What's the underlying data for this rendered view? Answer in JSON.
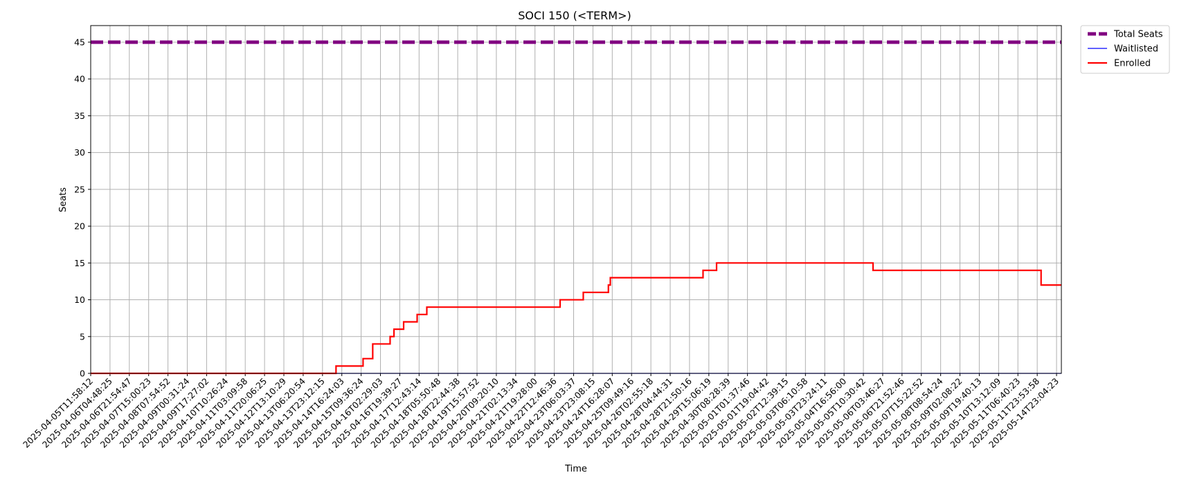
{
  "chart_data": {
    "type": "line",
    "title": "SOCI 150 (<TERM>)",
    "xlabel": "Time",
    "ylabel": "Seats",
    "ylim": [
      0,
      47.25
    ],
    "yticks": [
      0,
      5,
      10,
      15,
      20,
      25,
      30,
      35,
      40,
      45
    ],
    "grid": true,
    "legend_position": "outside top-right",
    "x_tick_labels": [
      "2025-04-05T11:58:12",
      "2025-04-06T04:48:25",
      "2025-04-06T21:54:47",
      "2025-04-07T15:00:23",
      "2025-04-08T07:54:52",
      "2025-04-09T00:31:24",
      "2025-04-09T17:27:02",
      "2025-04-10T10:26:24",
      "2025-04-11T03:09:58",
      "2025-04-11T20:06:25",
      "2025-04-12T13:10:29",
      "2025-04-13T06:20:54",
      "2025-04-13T23:12:15",
      "2025-04-14T16:24:03",
      "2025-04-15T09:36:24",
      "2025-04-16T02:29:03",
      "2025-04-16T19:39:27",
      "2025-04-17T12:43:14",
      "2025-04-18T05:50:48",
      "2025-04-18T22:44:38",
      "2025-04-19T15:57:52",
      "2025-04-20T09:20:10",
      "2025-04-21T02:13:34",
      "2025-04-21T19:28:00",
      "2025-04-22T12:46:36",
      "2025-04-23T06:03:37",
      "2025-04-23T23:08:15",
      "2025-04-24T16:28:07",
      "2025-04-25T09:49:16",
      "2025-04-26T02:55:18",
      "2025-04-28T04:44:31",
      "2025-04-28T21:50:16",
      "2025-04-29T15:06:19",
      "2025-04-30T08:28:39",
      "2025-05-01T01:37:46",
      "2025-05-01T19:04:42",
      "2025-05-02T12:39:15",
      "2025-05-03T06:10:58",
      "2025-05-03T23:24:11",
      "2025-05-04T16:56:00",
      "2025-05-05T10:30:42",
      "2025-05-06T03:46:27",
      "2025-05-06T21:52:46",
      "2025-05-07T15:22:52",
      "2025-05-08T08:54:24",
      "2025-05-09T02:08:22",
      "2025-05-09T19:40:13",
      "2025-05-10T13:12:09",
      "2025-05-11T06:40:23",
      "2025-05-11T23:53:58",
      "2025-05-14T23:04:23"
    ],
    "x_index_range": [
      0,
      50.25
    ],
    "series": [
      {
        "name": "Total Seats",
        "color": "#800080",
        "style": "dashed",
        "points": [
          [
            0,
            45
          ],
          [
            50.25,
            45
          ]
        ]
      },
      {
        "name": "Waitlisted",
        "color": "#0000ff",
        "style": "solid",
        "points": [
          [
            0,
            0
          ],
          [
            50.25,
            0
          ]
        ]
      },
      {
        "name": "Enrolled",
        "color": "#ff0000",
        "style": "step",
        "points": [
          [
            0,
            0
          ],
          [
            12.7,
            1
          ],
          [
            14.1,
            2
          ],
          [
            14.6,
            4
          ],
          [
            15.5,
            5
          ],
          [
            15.7,
            6
          ],
          [
            16.2,
            7
          ],
          [
            16.9,
            8
          ],
          [
            17.4,
            9
          ],
          [
            24.3,
            10
          ],
          [
            25.5,
            11
          ],
          [
            26.8,
            12
          ],
          [
            26.9,
            13
          ],
          [
            31.7,
            14
          ],
          [
            32.4,
            15
          ],
          [
            40.5,
            14
          ],
          [
            49.2,
            12
          ],
          [
            50.25,
            12
          ]
        ]
      }
    ]
  }
}
